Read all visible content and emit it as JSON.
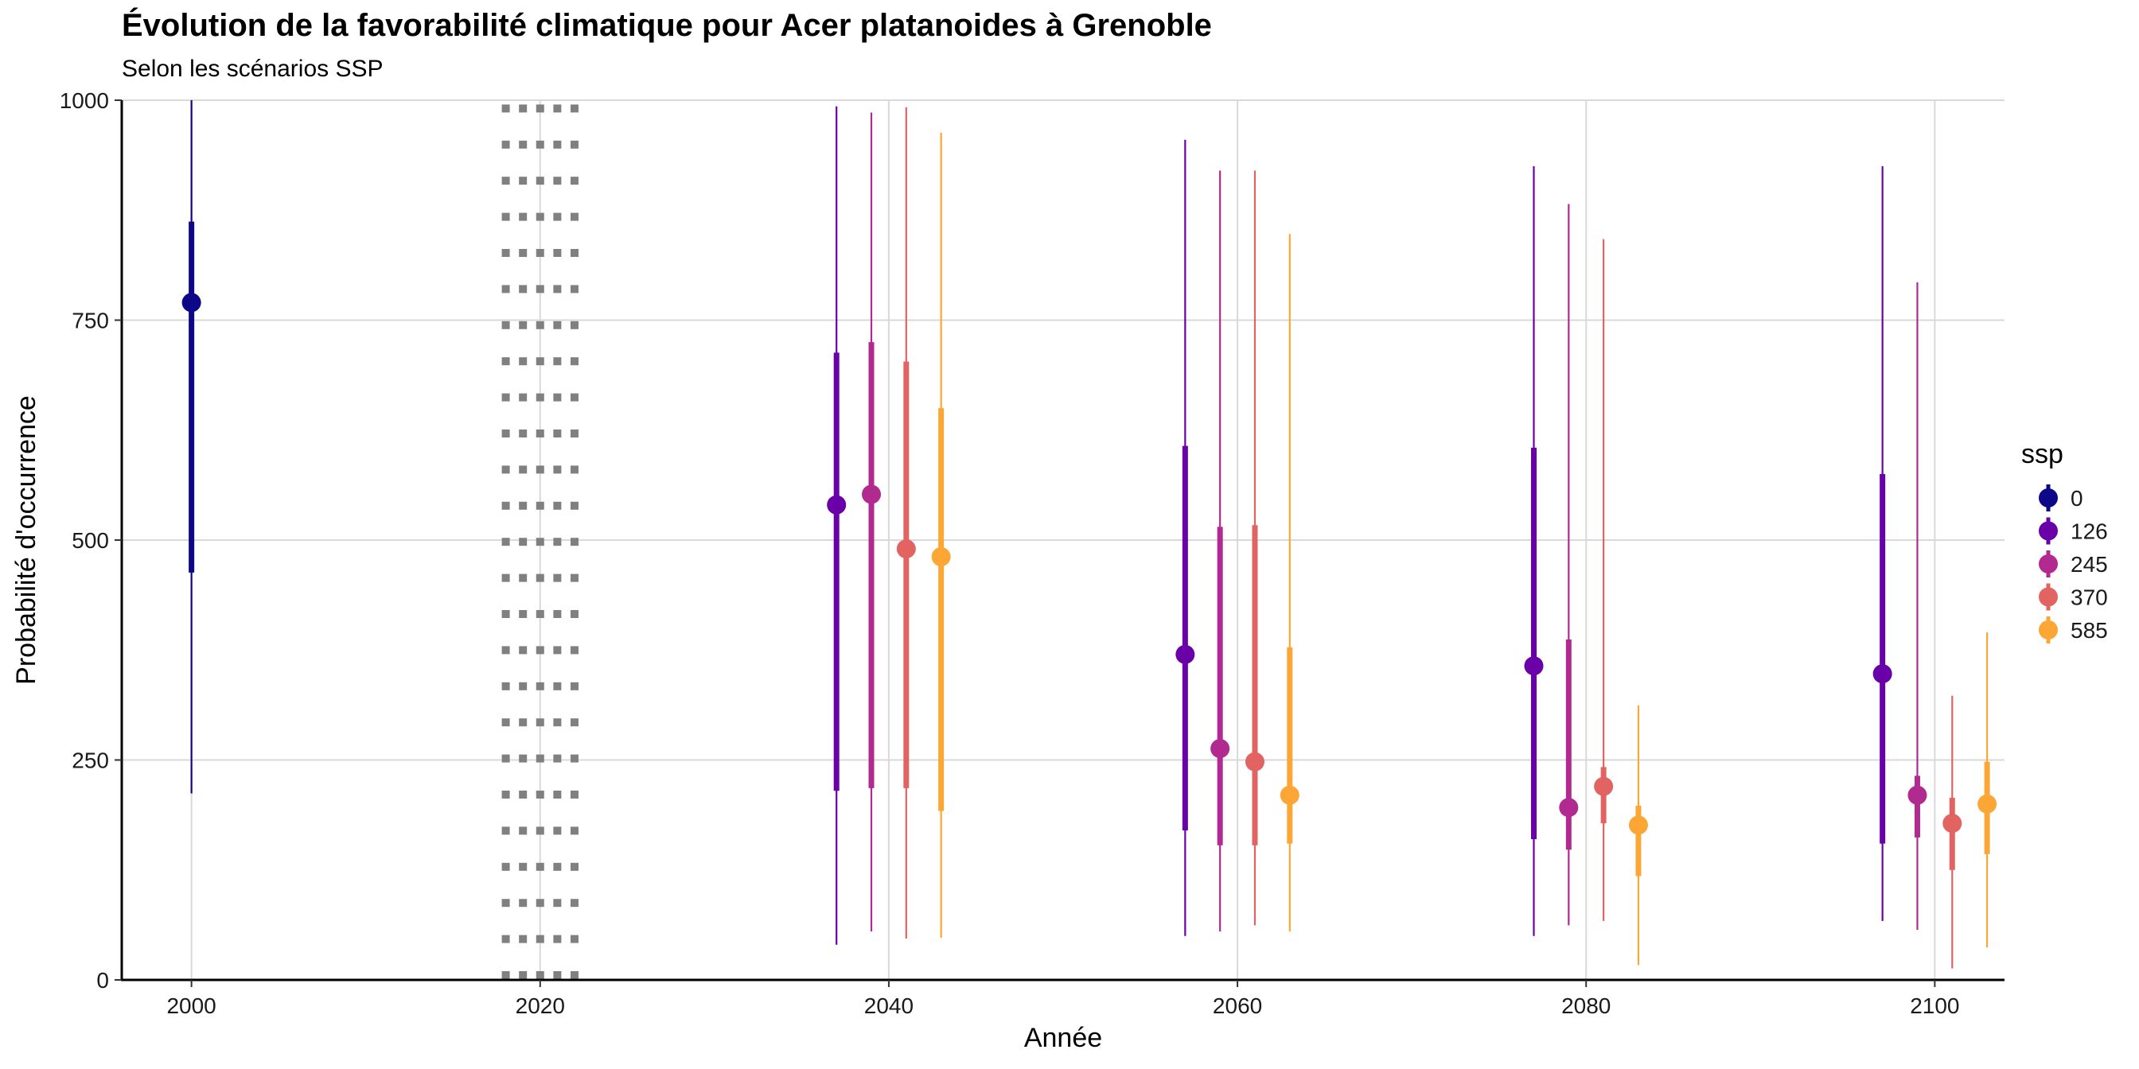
{
  "chart_data": {
    "type": "pointrange",
    "title": "Évolution de la favorabilité climatique pour Acer platanoides à Grenoble",
    "subtitle": "Selon les scénarios SSP",
    "xlabel": "Année",
    "ylabel": "Probabilité d'occurrence",
    "xlim": [
      1996,
      2104
    ],
    "ylim": [
      0,
      1000
    ],
    "x_ticks": [
      "2000",
      "2020",
      "2040",
      "2060",
      "2080",
      "2100"
    ],
    "y_ticks": [
      "0",
      "250",
      "500",
      "750",
      "1000"
    ],
    "grid": true,
    "reference_line": {
      "style": "dotted",
      "x_from": 2017.8,
      "x_to": 2022.2,
      "color": "#808080"
    },
    "legend": {
      "title": "ssp",
      "position": "right",
      "entries": [
        "0",
        "126",
        "245",
        "370",
        "585"
      ]
    },
    "series": [
      {
        "name": "0",
        "color": "#0d0887",
        "points": [
          {
            "x": 2000,
            "y": 770,
            "inner": [
              463,
              862
            ],
            "outer": [
              212,
              1000
            ]
          }
        ]
      },
      {
        "name": "126",
        "color": "#6a00a8",
        "points": [
          {
            "x": 2037,
            "y": 540,
            "inner": [
              215,
              713
            ],
            "outer": [
              40,
              993
            ]
          },
          {
            "x": 2057,
            "y": 370,
            "inner": [
              170,
              607
            ],
            "outer": [
              50,
              955
            ]
          },
          {
            "x": 2077,
            "y": 357,
            "inner": [
              160,
              605
            ],
            "outer": [
              50,
              925
            ]
          },
          {
            "x": 2097,
            "y": 348,
            "inner": [
              155,
              575
            ],
            "outer": [
              67,
              925
            ]
          }
        ]
      },
      {
        "name": "245",
        "color": "#b12a90",
        "points": [
          {
            "x": 2039,
            "y": 552,
            "inner": [
              218,
              725
            ],
            "outer": [
              55,
              986
            ]
          },
          {
            "x": 2059,
            "y": 263,
            "inner": [
              153,
              515
            ],
            "outer": [
              55,
              920
            ]
          },
          {
            "x": 2079,
            "y": 196,
            "inner": [
              148,
              387
            ],
            "outer": [
              62,
              882
            ]
          },
          {
            "x": 2099,
            "y": 210,
            "inner": [
              162,
              232
            ],
            "outer": [
              57,
              793
            ]
          }
        ]
      },
      {
        "name": "370",
        "color": "#e16462",
        "points": [
          {
            "x": 2041,
            "y": 490,
            "inner": [
              218,
              703
            ],
            "outer": [
              47,
              992
            ]
          },
          {
            "x": 2061,
            "y": 248,
            "inner": [
              153,
              517
            ],
            "outer": [
              62,
              920
            ]
          },
          {
            "x": 2081,
            "y": 220,
            "inner": [
              178,
              242
            ],
            "outer": [
              67,
              842
            ]
          },
          {
            "x": 2101,
            "y": 178,
            "inner": [
              125,
              207
            ],
            "outer": [
              13,
              323
            ]
          }
        ]
      },
      {
        "name": "585",
        "color": "#fca636",
        "points": [
          {
            "x": 2043,
            "y": 481,
            "inner": [
              192,
              650
            ],
            "outer": [
              48,
              963
            ]
          },
          {
            "x": 2063,
            "y": 210,
            "inner": [
              155,
              378
            ],
            "outer": [
              55,
              848
            ]
          },
          {
            "x": 2083,
            "y": 176,
            "inner": [
              118,
              198
            ],
            "outer": [
              17,
              312
            ]
          },
          {
            "x": 2103,
            "y": 200,
            "inner": [
              143,
              248
            ],
            "outer": [
              37,
              395
            ]
          }
        ]
      }
    ]
  }
}
